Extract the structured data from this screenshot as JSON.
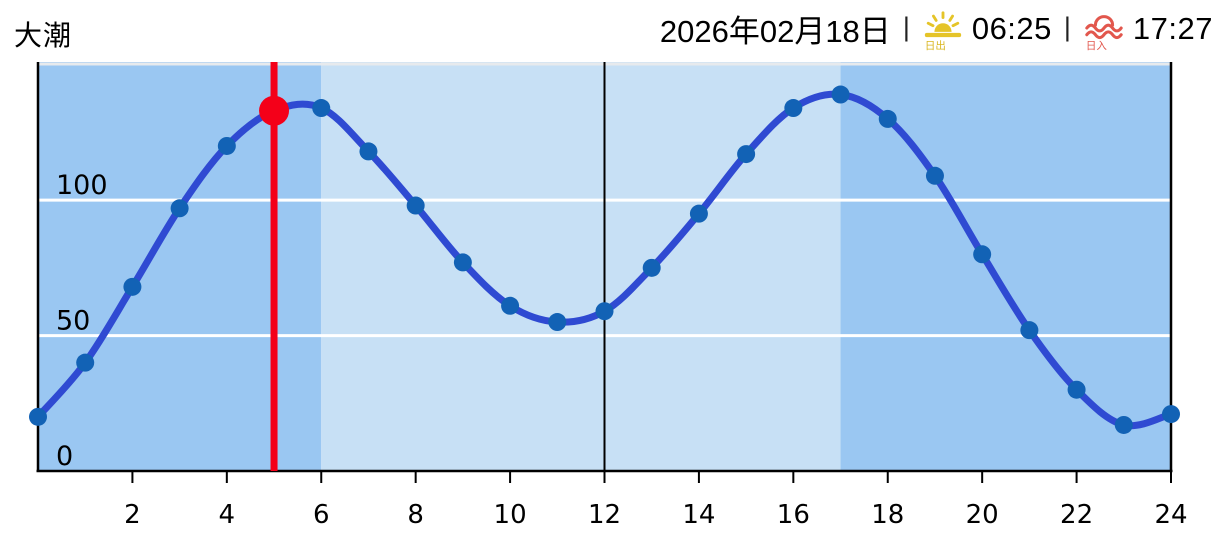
{
  "header": {
    "tide_type": "大潮",
    "date": "2026年02月18日",
    "separator": "|",
    "sunrise": {
      "label": "日出",
      "time": "06:25"
    },
    "sunset": {
      "label": "日入",
      "time": "17:27"
    }
  },
  "chart_data": {
    "type": "line",
    "x": [
      0,
      1,
      2,
      3,
      4,
      5,
      6,
      7,
      8,
      9,
      10,
      11,
      12,
      13,
      14,
      15,
      16,
      17,
      18,
      19,
      20,
      21,
      22,
      23,
      24
    ],
    "values": [
      20,
      40,
      68,
      97,
      120,
      133,
      134,
      118,
      98,
      77,
      61,
      55,
      59,
      75,
      95,
      117,
      134,
      139,
      130,
      109,
      80,
      52,
      30,
      17,
      21
    ],
    "x_ticks": [
      2,
      4,
      6,
      8,
      10,
      12,
      14,
      16,
      18,
      20,
      22,
      24
    ],
    "y_ticks": [
      0,
      50,
      100
    ],
    "y_gridlines_white": [
      50,
      100
    ],
    "x_range": [
      0,
      24
    ],
    "y_range": [
      0,
      151
    ],
    "grid": true,
    "legend_position": "none",
    "current_time_hour": 5,
    "current_value": 133,
    "noon_hour": 12,
    "daylight": {
      "start_hour": 6,
      "end_hour": 17
    },
    "colors": {
      "night_bg": "#9ac7f2",
      "day_bg": "#c7e0f5",
      "line": "#2f4ad2",
      "point": "#1262b5",
      "current_marker": "#f40019",
      "gridline_white": "#ffffff",
      "gridline_top": "#e7eaed",
      "axis": "#000000",
      "sunrise_icon": "#e5c428",
      "sunset_icon": "#e2574d"
    }
  }
}
